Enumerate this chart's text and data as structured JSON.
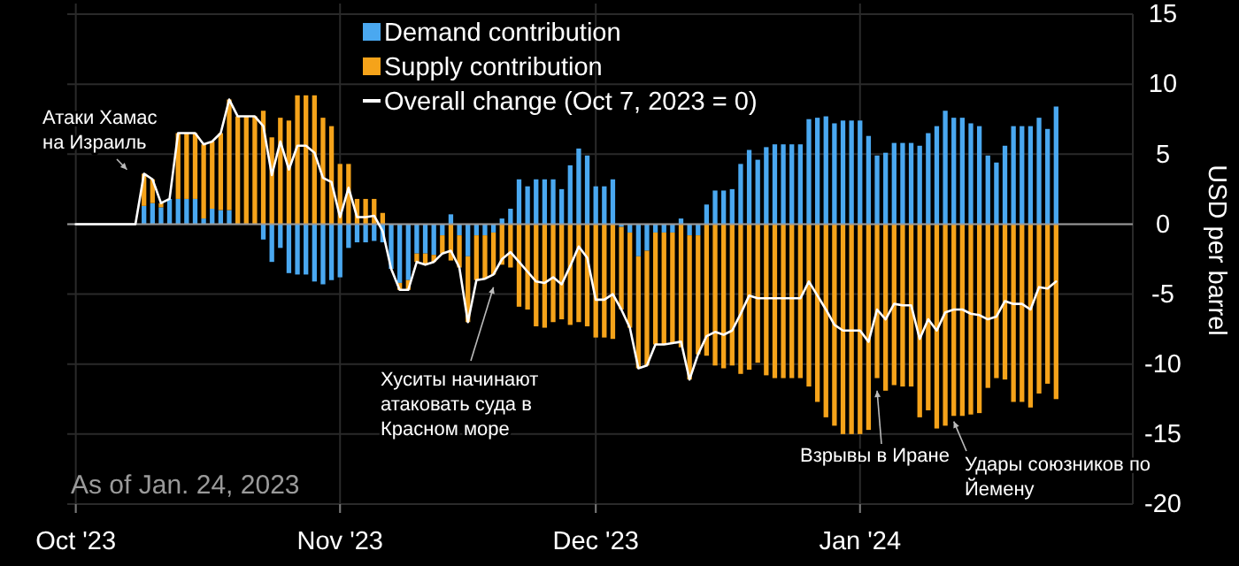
{
  "chart_data": {
    "type": "bar",
    "stacked": true,
    "grid": true,
    "legend": "top",
    "ylabel": "USD per barrel",
    "xlim": [
      "2023-09-30",
      "2024-02-02"
    ],
    "xticks": [
      {
        "value": "2023-10-01",
        "label": "Oct '23"
      },
      {
        "value": "2023-11-01",
        "label": "Nov '23"
      },
      {
        "value": "2023-12-01",
        "label": "Dec '23"
      },
      {
        "value": "2024-01-01",
        "label": "Jan '24"
      }
    ],
    "ylim": [
      -20,
      15
    ],
    "yticks": [
      -20,
      -15,
      -10,
      -5,
      0,
      5,
      10,
      15
    ],
    "x": [
      "2023-10-01",
      "2023-10-02",
      "2023-10-03",
      "2023-10-04",
      "2023-10-05",
      "2023-10-06",
      "2023-10-07",
      "2023-10-08",
      "2023-10-09",
      "2023-10-10",
      "2023-10-11",
      "2023-10-12",
      "2023-10-13",
      "2023-10-14",
      "2023-10-15",
      "2023-10-16",
      "2023-10-17",
      "2023-10-18",
      "2023-10-19",
      "2023-10-20",
      "2023-10-21",
      "2023-10-22",
      "2023-10-23",
      "2023-10-24",
      "2023-10-25",
      "2023-10-26",
      "2023-10-27",
      "2023-10-28",
      "2023-10-29",
      "2023-10-30",
      "2023-10-31",
      "2023-11-01",
      "2023-11-02",
      "2023-11-03",
      "2023-11-04",
      "2023-11-05",
      "2023-11-06",
      "2023-11-07",
      "2023-11-08",
      "2023-11-09",
      "2023-11-10",
      "2023-11-11",
      "2023-11-12",
      "2023-11-13",
      "2023-11-14",
      "2023-11-15",
      "2023-11-16",
      "2023-11-17",
      "2023-11-18",
      "2023-11-19",
      "2023-11-20",
      "2023-11-21",
      "2023-11-22",
      "2023-11-23",
      "2023-11-24",
      "2023-11-25",
      "2023-11-26",
      "2023-11-27",
      "2023-11-28",
      "2023-11-29",
      "2023-11-30",
      "2023-12-01",
      "2023-12-02",
      "2023-12-03",
      "2023-12-04",
      "2023-12-05",
      "2023-12-06",
      "2023-12-07",
      "2023-12-08",
      "2023-12-09",
      "2023-12-10",
      "2023-12-11",
      "2023-12-12",
      "2023-12-13",
      "2023-12-14",
      "2023-12-15",
      "2023-12-16",
      "2023-12-17",
      "2023-12-18",
      "2023-12-19",
      "2023-12-20",
      "2023-12-21",
      "2023-12-22",
      "2023-12-23",
      "2023-12-24",
      "2023-12-25",
      "2023-12-26",
      "2023-12-27",
      "2023-12-28",
      "2023-12-29",
      "2023-12-30",
      "2023-12-31",
      "2024-01-01",
      "2024-01-02",
      "2024-01-03",
      "2024-01-04",
      "2024-01-05",
      "2024-01-06",
      "2024-01-07",
      "2024-01-08",
      "2024-01-09",
      "2024-01-10",
      "2024-01-11",
      "2024-01-12",
      "2024-01-13",
      "2024-01-14",
      "2024-01-15",
      "2024-01-16",
      "2024-01-17",
      "2024-01-18",
      "2024-01-19",
      "2024-01-20",
      "2024-01-21",
      "2024-01-22",
      "2024-01-23",
      "2024-01-24"
    ],
    "series": [
      {
        "name": "Demand contribution",
        "color": "#4aa8f0",
        "values": [
          null,
          null,
          null,
          null,
          null,
          null,
          null,
          null,
          1.3,
          1.5,
          1.2,
          1.8,
          1.8,
          1.8,
          1.8,
          0.4,
          1.1,
          1.0,
          1.0,
          0,
          0,
          0,
          -1.1,
          -2.7,
          -1.7,
          -3.5,
          -3.6,
          -3.6,
          -4.1,
          -4.3,
          -4.0,
          -3.8,
          -1.7,
          -1.3,
          -1.3,
          -1.2,
          -1.3,
          -3.2,
          -4.2,
          -4.0,
          -2.1,
          -2.1,
          -2.2,
          -0.8,
          0.7,
          -0.8,
          -2.3,
          -0.8,
          -0.8,
          -0.6,
          0.4,
          1.1,
          3.2,
          2.7,
          3.2,
          3.2,
          3.2,
          2.5,
          4.2,
          5.4,
          4.9,
          2.7,
          2.7,
          3.2,
          -0.2,
          -0.6,
          -2.3,
          -1.9,
          -0.6,
          -0.6,
          -0.6,
          0.4,
          -0.8,
          -0.8,
          1.4,
          2.4,
          2.4,
          2.5,
          4.3,
          5.3,
          4.6,
          5.5,
          5.7,
          5.7,
          5.7,
          5.7,
          7.5,
          7.6,
          7.7,
          7.2,
          7.4,
          7.4,
          7.4,
          6.3,
          4.9,
          5.1,
          5.8,
          5.8,
          5.8,
          5.6,
          6.5,
          7.0,
          8.1,
          7.6,
          7.6,
          7.2,
          7.0,
          4.9,
          4.4,
          5.6,
          7.0,
          7.0,
          7.0,
          7.6,
          6.8,
          8.4
        ]
      },
      {
        "name": "Supply contribution",
        "color": "#f5a31a",
        "values": [
          null,
          null,
          null,
          null,
          null,
          null,
          null,
          null,
          2.3,
          1.7,
          0.3,
          0,
          4.7,
          4.7,
          4.7,
          5.3,
          4.8,
          5.5,
          7.9,
          7.7,
          7.7,
          7.7,
          8.1,
          6.2,
          7.6,
          7.4,
          9.2,
          9.2,
          9.2,
          7.6,
          7.0,
          4.3,
          4.3,
          1.8,
          1.8,
          1.8,
          0.8,
          0,
          -0.5,
          -0.7,
          -0.6,
          -0.8,
          -0.5,
          -1.3,
          -2.6,
          -2.3,
          -4.7,
          -3.2,
          -3.1,
          -3.0,
          -2.9,
          -3.1,
          -5.9,
          -6.1,
          -7.3,
          -7.4,
          -7.0,
          -6.8,
          -7.2,
          -7.0,
          -7.3,
          -8.1,
          -8.1,
          -8.2,
          -5.9,
          -6.8,
          -8.0,
          -8.2,
          -8.0,
          -8.0,
          -7.9,
          -8.8,
          -10.3,
          -8.5,
          -9.4,
          -10.1,
          -10.3,
          -10.1,
          -10.7,
          -10.4,
          -9.9,
          -10.8,
          -11.0,
          -11.0,
          -11.0,
          -11.0,
          -11.6,
          -12.7,
          -13.8,
          -14.4,
          -15.0,
          -15.0,
          -15.0,
          -14.7,
          -11.0,
          -11.9,
          -11.5,
          -11.6,
          -11.6,
          -13.8,
          -13.3,
          -14.6,
          -14.4,
          -13.7,
          -13.7,
          -13.6,
          -13.5,
          -11.7,
          -11.0,
          -11.1,
          -12.7,
          -12.7,
          -13.1,
          -12.1,
          -11.4,
          -12.5
        ]
      },
      {
        "name": "Overall change (Oct 7, 2023 = 0)",
        "type": "line",
        "color": "#ffffff",
        "values": [
          0,
          0,
          0,
          0,
          0,
          0,
          0,
          0,
          3.6,
          3.2,
          1.5,
          1.8,
          6.5,
          6.5,
          6.5,
          5.7,
          5.9,
          6.5,
          8.9,
          7.7,
          7.7,
          7.7,
          7.0,
          3.5,
          5.9,
          3.9,
          5.6,
          5.6,
          5.1,
          3.3,
          3.0,
          0.5,
          2.6,
          0.5,
          0.5,
          0.6,
          -0.5,
          -3.2,
          -4.7,
          -4.7,
          -2.7,
          -2.9,
          -2.7,
          -2.1,
          -1.9,
          -3.1,
          -7.0,
          -4.0,
          -3.9,
          -3.6,
          -2.5,
          -2.0,
          -2.7,
          -3.4,
          -4.1,
          -4.2,
          -3.8,
          -4.3,
          -3.0,
          -1.6,
          -2.4,
          -5.4,
          -5.4,
          -5.0,
          -6.1,
          -7.4,
          -10.3,
          -10.1,
          -8.6,
          -8.6,
          -8.5,
          -8.4,
          -11.1,
          -9.3,
          -8.0,
          -7.7,
          -7.9,
          -7.6,
          -6.4,
          -5.1,
          -5.3,
          -5.3,
          -5.3,
          -5.3,
          -5.3,
          -5.3,
          -4.1,
          -5.1,
          -6.1,
          -7.2,
          -7.6,
          -7.6,
          -7.6,
          -8.4,
          -6.1,
          -6.8,
          -5.7,
          -5.8,
          -5.8,
          -8.2,
          -6.8,
          -7.6,
          -6.3,
          -6.1,
          -6.1,
          -6.4,
          -6.5,
          -6.8,
          -6.6,
          -5.5,
          -5.7,
          -5.7,
          -6.1,
          -4.5,
          -4.6,
          -4.1
        ]
      }
    ],
    "annotations": [
      {
        "text": "Атаки Хамас на Израиль",
        "x": "2023-10-07",
        "y": 3.9
      },
      {
        "text": "Хуситы начинают атаковать суда в Красном море",
        "x": "2023-11-19",
        "y": -4.5
      },
      {
        "text": "Взрывы в Иране",
        "x": "2024-01-03",
        "y": -11.9
      },
      {
        "text": "Удары союзников по Йемену",
        "x": "2024-01-12",
        "y": -14.1
      },
      "As of Jan. 24, 2023"
    ]
  }
}
